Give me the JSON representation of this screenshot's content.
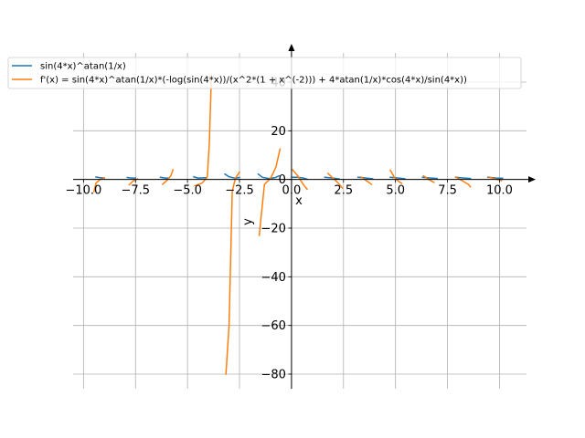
{
  "chart_data": {
    "type": "line",
    "xlabel": "x",
    "ylabel": "y",
    "xlim": [
      -10.5,
      11.3
    ],
    "ylim": [
      -86,
      52
    ],
    "xticks": [
      -10.0,
      -7.5,
      -5.0,
      -2.5,
      0.0,
      2.5,
      5.0,
      7.5,
      10.0
    ],
    "xtick_labels": [
      "−10.0",
      "−7.5",
      "−5.0",
      "−2.5",
      "0.0",
      "2.5",
      "5.0",
      "7.5",
      "10.0"
    ],
    "yticks": [
      -80,
      -60,
      -40,
      -20,
      0,
      20,
      40
    ],
    "ytick_labels": [
      "−80",
      "−60",
      "−40",
      "−20",
      "0",
      "20",
      "40"
    ],
    "grid": true,
    "legend_position": "top-left",
    "series": [
      {
        "name": "sin(4*x)^atan(1/x)",
        "color": "#1f77b4",
        "segments": [
          [
            [
              -9.4,
              1.0
            ],
            [
              -9.2,
              0.7
            ],
            [
              -9.0,
              0.6
            ]
          ],
          [
            [
              -7.9,
              0.8
            ],
            [
              -7.7,
              0.6
            ],
            [
              -7.5,
              0.6
            ]
          ],
          [
            [
              -6.3,
              0.9
            ],
            [
              -6.1,
              0.6
            ],
            [
              -5.9,
              0.6
            ]
          ],
          [
            [
              -4.7,
              1.1
            ],
            [
              -4.5,
              0.6
            ],
            [
              -4.1,
              0.7
            ]
          ],
          [
            [
              -3.2,
              2.2
            ],
            [
              -3.0,
              1.1
            ],
            [
              -2.7,
              0.5
            ],
            [
              -2.5,
              0.8
            ]
          ],
          [
            [
              -1.6,
              2.2
            ],
            [
              -1.4,
              0.9
            ],
            [
              -1.1,
              0.4
            ],
            [
              -0.8,
              0.7
            ],
            [
              -0.6,
              1.5
            ]
          ],
          [
            [
              0.05,
              0.9
            ],
            [
              0.3,
              0.9
            ],
            [
              0.6,
              0.5
            ],
            [
              0.75,
              0.1
            ]
          ],
          [
            [
              1.6,
              0.9
            ],
            [
              2.0,
              0.6
            ],
            [
              2.3,
              0.2
            ]
          ],
          [
            [
              3.2,
              0.9
            ],
            [
              3.6,
              0.6
            ],
            [
              3.9,
              0.3
            ]
          ],
          [
            [
              4.75,
              0.9
            ],
            [
              5.15,
              0.6
            ],
            [
              5.45,
              0.3
            ]
          ],
          [
            [
              6.3,
              0.9
            ],
            [
              6.7,
              0.6
            ],
            [
              7.0,
              0.4
            ]
          ],
          [
            [
              7.9,
              0.9
            ],
            [
              8.3,
              0.6
            ],
            [
              8.6,
              0.4
            ]
          ],
          [
            [
              9.45,
              0.9
            ],
            [
              9.85,
              0.6
            ],
            [
              10.15,
              0.5
            ]
          ]
        ]
      },
      {
        "name": "f'(x) = sin(4*x)^atan(1/x)*(-log(sin(4*x))/(x^2*(1 + x^(-2))) + 4*atan(1/x)*cos(4*x)/sin(4*x))",
        "color": "#ff7f0e",
        "segments": [
          [
            [
              -9.5,
              -5.0
            ],
            [
              -9.4,
              -1.5
            ],
            [
              -9.2,
              0.0
            ],
            [
              -9.0,
              0.6
            ]
          ],
          [
            [
              -7.8,
              -2.2
            ],
            [
              -7.6,
              -0.5
            ],
            [
              -7.4,
              0.2
            ]
          ],
          [
            [
              -6.2,
              -2.0
            ],
            [
              -6.0,
              -0.5
            ],
            [
              -5.8,
              1.5
            ],
            [
              -5.7,
              4.0
            ]
          ],
          [
            [
              -4.65,
              -2.6
            ],
            [
              -4.3,
              -1.5
            ],
            [
              -4.05,
              1.0
            ],
            [
              -3.95,
              15.0
            ],
            [
              -3.85,
              43.0
            ]
          ],
          [
            [
              -3.15,
              -80.0
            ],
            [
              -3.0,
              -60.0
            ],
            [
              -2.85,
              -5.0
            ],
            [
              -2.7,
              0.5
            ],
            [
              -2.5,
              3.0
            ]
          ],
          [
            [
              -1.55,
              -23.0
            ],
            [
              -1.3,
              -2.0
            ],
            [
              -1.0,
              0.5
            ],
            [
              -0.75,
              5.0
            ],
            [
              -0.55,
              12.5
            ]
          ],
          [
            [
              0.05,
              4.0
            ],
            [
              0.3,
              1.5
            ],
            [
              0.6,
              -2.5
            ],
            [
              0.75,
              -4.0
            ]
          ],
          [
            [
              1.75,
              2.5
            ],
            [
              2.0,
              0.5
            ],
            [
              2.25,
              -1.5
            ],
            [
              2.45,
              -3.5
            ]
          ],
          [
            [
              3.35,
              1.0
            ],
            [
              3.6,
              -0.5
            ],
            [
              3.85,
              -2.0
            ]
          ],
          [
            [
              4.75,
              3.8
            ],
            [
              4.95,
              0.8
            ],
            [
              5.15,
              -0.8
            ],
            [
              5.3,
              -1.6
            ]
          ],
          [
            [
              6.35,
              1.5
            ],
            [
              6.6,
              0.0
            ],
            [
              6.85,
              -1.2
            ]
          ],
          [
            [
              7.9,
              1.0
            ],
            [
              8.2,
              -0.5
            ],
            [
              8.5,
              -2.0
            ],
            [
              8.6,
              -3.0
            ]
          ],
          [
            [
              9.5,
              1.0
            ],
            [
              9.8,
              0.2
            ],
            [
              10.1,
              -0.5
            ]
          ]
        ]
      }
    ]
  }
}
